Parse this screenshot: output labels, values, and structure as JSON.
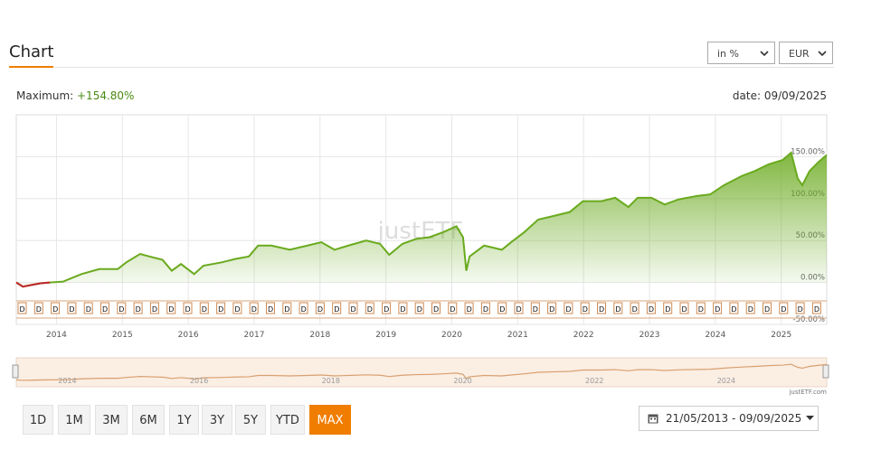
{
  "header": {
    "title": "Chart",
    "unit_select": "in %",
    "currency_select": "EUR"
  },
  "chart_data": {
    "type": "area",
    "maximum_label": "Maximum:",
    "maximum_value": "+154.80%",
    "date_label": "date: 09/09/2025",
    "watermark": "justETF",
    "credit": "justETF.com",
    "event_label": "D",
    "x": [
      2013.39,
      2013.49,
      2013.62,
      2013.76,
      2013.9,
      2014.1,
      2014.38,
      2014.65,
      2014.93,
      2015.06,
      2015.27,
      2015.41,
      2015.61,
      2015.75,
      2015.89,
      2016.09,
      2016.23,
      2016.51,
      2016.71,
      2016.92,
      2017.06,
      2017.26,
      2017.54,
      2017.81,
      2018.02,
      2018.22,
      2018.43,
      2018.7,
      2018.91,
      2019.05,
      2019.25,
      2019.46,
      2019.66,
      2019.87,
      2020.07,
      2020.17,
      2020.22,
      2020.27,
      2020.49,
      2020.76,
      2020.9,
      2021.1,
      2021.31,
      2021.58,
      2021.79,
      2021.99,
      2022.27,
      2022.48,
      2022.68,
      2022.82,
      2023.03,
      2023.23,
      2023.44,
      2023.71,
      2023.92,
      2024.13,
      2024.4,
      2024.6,
      2024.81,
      2025.02,
      2025.15,
      2025.25,
      2025.32,
      2025.43,
      2025.57,
      2025.69
    ],
    "values": [
      0,
      -5,
      -3,
      -1,
      0,
      1,
      10,
      16,
      16,
      24,
      34,
      31,
      27,
      14,
      22,
      10,
      20,
      24,
      28,
      31,
      44,
      44,
      39,
      44,
      48,
      39,
      44,
      50,
      46,
      33,
      46,
      52,
      54,
      60,
      67,
      54,
      14,
      31,
      44,
      39,
      48,
      60,
      75,
      80,
      84,
      97,
      97,
      101,
      90,
      101,
      101,
      93,
      99,
      103,
      105,
      116,
      127,
      133,
      141,
      146,
      154.8,
      124,
      116,
      133,
      144,
      152
    ],
    "color": "#6aaa1e",
    "negative_color": "#c0262c",
    "xlim": [
      2013.39,
      2025.69
    ],
    "xticks": [
      2014,
      2015,
      2016,
      2017,
      2018,
      2019,
      2020,
      2021,
      2022,
      2023,
      2024,
      2025
    ],
    "ylim": [
      -50,
      200
    ],
    "yticks": [
      {
        "value": 150,
        "label": "150.00%"
      },
      {
        "value": 100,
        "label": "100.00%"
      },
      {
        "value": 50,
        "label": "50.00%"
      },
      {
        "value": 0,
        "label": "0.00%"
      },
      {
        "value": -50,
        "label": "-50.00%"
      }
    ],
    "grid": true,
    "navigator_xticks": [
      2014,
      2016,
      2018,
      2020,
      2022,
      2024
    ]
  },
  "controls": {
    "ranges": [
      "1D",
      "1M",
      "3M",
      "6M",
      "1Y",
      "3Y",
      "5Y",
      "YTD",
      "MAX"
    ],
    "active_index": 8,
    "date_range": "21/05/2013 - 09/09/2025"
  }
}
